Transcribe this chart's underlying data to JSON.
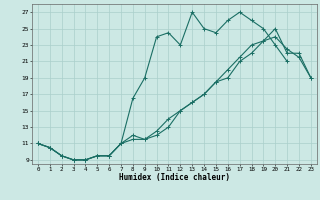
{
  "title": "",
  "xlabel": "Humidex (Indice chaleur)",
  "ylabel": "",
  "bg_color": "#cce8e4",
  "grid_color": "#aacfcb",
  "line_color": "#1a6e64",
  "xlim": [
    -0.5,
    23.5
  ],
  "ylim": [
    8.5,
    28.0
  ],
  "xticks": [
    0,
    1,
    2,
    3,
    4,
    5,
    6,
    7,
    8,
    9,
    10,
    11,
    12,
    13,
    14,
    15,
    16,
    17,
    18,
    19,
    20,
    21,
    22,
    23
  ],
  "yticks": [
    9,
    11,
    13,
    15,
    17,
    19,
    21,
    23,
    25,
    27
  ],
  "curve1_x": [
    0,
    1,
    2,
    3,
    4,
    5,
    6,
    7,
    8,
    9,
    10,
    11,
    12,
    13,
    14,
    15,
    16,
    17,
    18,
    19,
    20,
    21,
    22,
    23
  ],
  "curve1_y": [
    11,
    10.5,
    9.5,
    9,
    9,
    9.5,
    9.5,
    11,
    11.5,
    11.5,
    12.5,
    14,
    15,
    16,
    17,
    18.5,
    20,
    21.5,
    23,
    23.5,
    25,
    22,
    22,
    19
  ],
  "curve2_x": [
    0,
    1,
    2,
    3,
    4,
    5,
    6,
    7,
    8,
    9,
    10,
    11,
    12,
    13,
    14,
    15,
    16,
    17,
    18,
    19,
    20,
    21
  ],
  "curve2_y": [
    11,
    10.5,
    9.5,
    9,
    9,
    9.5,
    9.5,
    11,
    16.5,
    19,
    24,
    24.5,
    23,
    27,
    25,
    24.5,
    26,
    27,
    26,
    25,
    23,
    21
  ],
  "curve3_x": [
    0,
    1,
    2,
    3,
    4,
    5,
    6,
    7,
    8,
    9,
    10,
    11,
    12,
    13,
    14,
    15,
    16,
    17,
    18,
    19,
    20,
    21,
    22,
    23
  ],
  "curve3_y": [
    11,
    10.5,
    9.5,
    9,
    9,
    9.5,
    9.5,
    11,
    12,
    11.5,
    12,
    13,
    15,
    16,
    17,
    18.5,
    19,
    21,
    22,
    23.5,
    24,
    22.5,
    21.5,
    19
  ]
}
